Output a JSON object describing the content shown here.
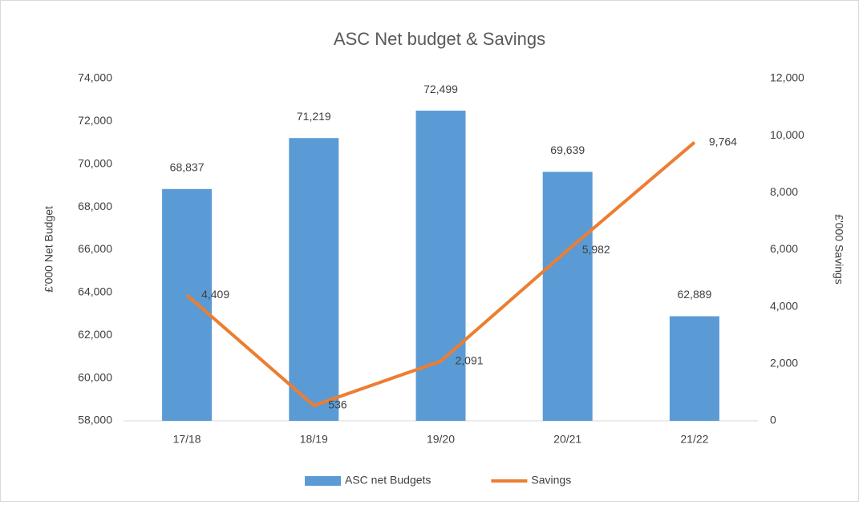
{
  "chart_data": {
    "type": "bar",
    "title": "ASC Net budget & Savings",
    "categories": [
      "17/18",
      "18/19",
      "19/20",
      "20/21",
      "21/22"
    ],
    "series": [
      {
        "name": "ASC net Budgets",
        "type": "bar",
        "color": "#5b9bd5",
        "axis": "y",
        "values": [
          68837,
          71219,
          72499,
          69639,
          62889
        ],
        "value_labels": [
          "68,837",
          "71,219",
          "72,499",
          "69,639",
          "62,889"
        ]
      },
      {
        "name": "Savings",
        "type": "line",
        "color": "#ed7d31",
        "axis": "y2",
        "values": [
          4409,
          536,
          2091,
          5982,
          9764
        ],
        "value_labels": [
          "4,409",
          "536",
          "2,091",
          "5,982",
          "9,764"
        ]
      }
    ],
    "ylabel": "£'000 Net  Budget",
    "y2label": "£'000 Savings",
    "ylim": [
      58000,
      74000
    ],
    "yticks": [
      {
        "value": 58000,
        "label": "58,000"
      },
      {
        "value": 60000,
        "label": "60,000"
      },
      {
        "value": 62000,
        "label": "62,000"
      },
      {
        "value": 64000,
        "label": "64,000"
      },
      {
        "value": 66000,
        "label": "66,000"
      },
      {
        "value": 68000,
        "label": "68,000"
      },
      {
        "value": 70000,
        "label": "70,000"
      },
      {
        "value": 72000,
        "label": "72,000"
      },
      {
        "value": 74000,
        "label": "74,000"
      }
    ],
    "y2lim": [
      0,
      12000
    ],
    "y2ticks": [
      0,
      {
        "value": 2000,
        "label": "2,000"
      },
      {
        "value": 4000,
        "label": "4,000"
      },
      {
        "value": 6000,
        "label": "6,000"
      },
      {
        "value": 8000,
        "label": "8,000"
      },
      {
        "value": 10000,
        "label": "10,000"
      },
      {
        "value": 12000,
        "label": "12,000"
      }
    ],
    "legend": "bottom",
    "grid": false
  }
}
